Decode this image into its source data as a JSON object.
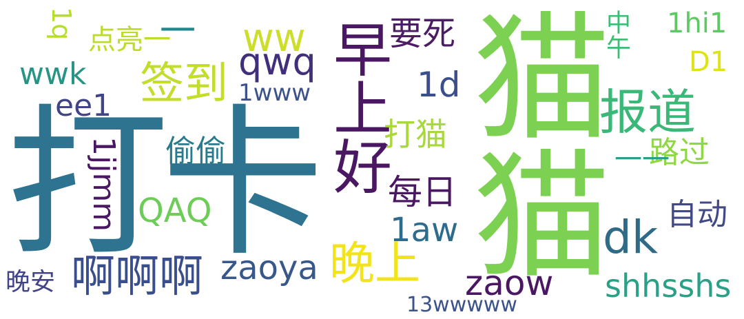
{
  "words": [
    {
      "text": "打卡",
      "color": "#2e7390",
      "vertical": false
    },
    {
      "text": "猫猫",
      "color": "#7dd152",
      "vertical": true
    },
    {
      "text": "早上好",
      "color": "#4a1862",
      "vertical": true
    },
    {
      "text": "报道",
      "color": "#3ab878",
      "vertical": false
    },
    {
      "text": "签到",
      "color": "#c4dc2a",
      "vertical": false
    },
    {
      "text": "晚上",
      "color": "#f3e31a",
      "vertical": false
    },
    {
      "text": "啊啊啊",
      "color": "#3b4e8c",
      "vertical": false
    },
    {
      "text": "dk",
      "color": "#2f6a86",
      "vertical": false
    },
    {
      "text": "ww",
      "color": "#cdde2a",
      "vertical": false
    },
    {
      "text": "qwq",
      "color": "#412f7c",
      "vertical": false
    },
    {
      "text": "要死",
      "color": "#4b1d63",
      "vertical": false
    },
    {
      "text": "1d",
      "color": "#3a4f8c",
      "vertical": false
    },
    {
      "text": "打猫",
      "color": "#a9d83a",
      "vertical": false
    },
    {
      "text": "每日",
      "color": "#4a1862",
      "vertical": false
    },
    {
      "text": "1jjmm",
      "color": "#4a1862",
      "vertical": true
    },
    {
      "text": "QAQ",
      "color": "#6ecc58",
      "vertical": false
    },
    {
      "text": "1aw",
      "color": "#2e6c8e",
      "vertical": false
    },
    {
      "text": "zaoya",
      "color": "#38588c",
      "vertical": false
    },
    {
      "text": "zaow",
      "color": "#4a1862",
      "vertical": false
    },
    {
      "text": "shhsshs",
      "color": "#2aa186",
      "vertical": false
    },
    {
      "text": "自动",
      "color": "#424a86",
      "vertical": false
    },
    {
      "text": "路过",
      "color": "#8fd744",
      "vertical": false
    },
    {
      "text": "一一",
      "color": "#2aa186",
      "vertical": false
    },
    {
      "text": "偷偷",
      "color": "#2a7a8e",
      "vertical": false
    },
    {
      "text": "wwk",
      "color": "#279586",
      "vertical": false
    },
    {
      "text": "ee1",
      "color": "#414487",
      "vertical": false
    },
    {
      "text": "点亮一",
      "color": "#bcdc2a",
      "vertical": false
    },
    {
      "text": "1q",
      "color": "#b5de2b",
      "vertical": true
    },
    {
      "text": "一",
      "color": "#24868e",
      "vertical": false
    },
    {
      "text": "1www",
      "color": "#3b528b",
      "vertical": false
    },
    {
      "text": "1hi1",
      "color": "#5ec962",
      "vertical": false
    },
    {
      "text": "D1",
      "color": "#dde318",
      "vertical": false
    },
    {
      "text": "中午",
      "color": "#3dbc74",
      "vertical": true
    },
    {
      "text": "晚安",
      "color": "#414487",
      "vertical": false
    },
    {
      "text": "13wwwww",
      "color": "#3b528b",
      "vertical": false
    }
  ]
}
